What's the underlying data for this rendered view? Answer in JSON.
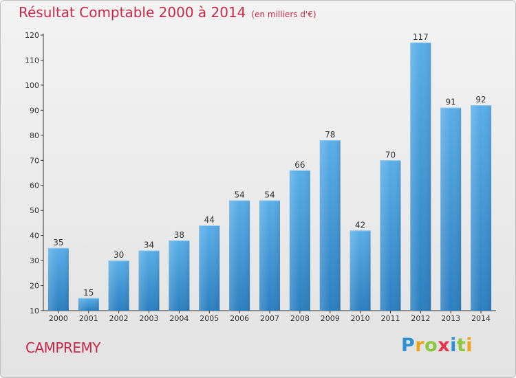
{
  "title": "Résultat Comptable 2000 à 2014",
  "subtitle": "(en milliers d'€)",
  "commune": "CAMPREMY",
  "logo": {
    "text": "Proxiti",
    "letters": [
      {
        "ch": "P",
        "color": "#2e8fd6"
      },
      {
        "ch": "r",
        "color": "#f0a21a"
      },
      {
        "ch": "o",
        "color": "#8dc63f"
      },
      {
        "ch": "x",
        "color": "#e8334a"
      },
      {
        "ch": "i",
        "color": "#2e8fd6"
      },
      {
        "ch": "t",
        "color": "#8dc63f"
      },
      {
        "ch": "i",
        "color": "#f0a21a"
      }
    ]
  },
  "colors": {
    "title": "#c8294a",
    "bar_top": "#5aaee8",
    "bar_bottom": "#2c7fc0"
  },
  "chart_data": {
    "type": "bar",
    "categories": [
      "2000",
      "2001",
      "2002",
      "2003",
      "2004",
      "2005",
      "2006",
      "2007",
      "2008",
      "2009",
      "2010",
      "2011",
      "2012",
      "2013",
      "2014"
    ],
    "values": [
      35,
      15,
      30,
      34,
      38,
      44,
      54,
      54,
      66,
      78,
      42,
      70,
      117,
      91,
      92
    ],
    "ylim": [
      10,
      120
    ],
    "yticks": [
      10,
      20,
      30,
      40,
      50,
      60,
      70,
      80,
      90,
      100,
      110,
      120
    ],
    "grid": false,
    "data_labels": true
  }
}
